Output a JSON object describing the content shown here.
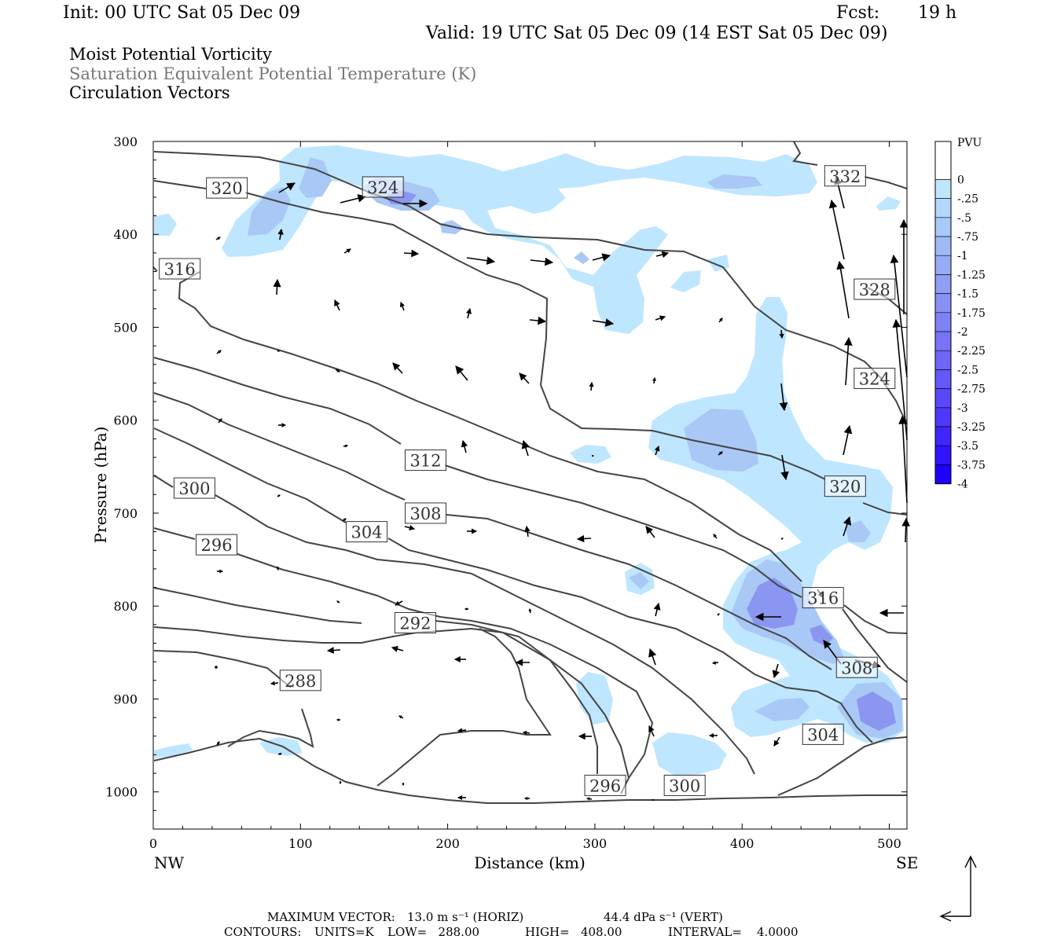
{
  "header": {
    "init": "Init: 00 UTC Sat 05 Dec 09",
    "fcst_label": "Fcst:",
    "fcst_value": "19 h",
    "valid": "Valid: 19 UTC Sat 05 Dec 09 (14 EST Sat 05 Dec 09)"
  },
  "fields": {
    "line1": "Moist Potential Vorticity",
    "line2": "Saturation Equivalent Potential Temperature (K)",
    "line3": "Circulation Vectors"
  },
  "footer": {
    "max_vector_label": "MAXIMUM VECTOR:",
    "horiz": "13.0 m s⁻¹ (HORIZ)",
    "vert": "44.4 dPa s⁻¹ (VERT)",
    "contours_label": "CONTOURS:",
    "units": "UNITS=K",
    "low": "LOW=   288.00",
    "high": "HIGH=   408.00",
    "interval": "INTERVAL=    4.0000"
  },
  "colors": {
    "contour": "#444444",
    "shade_light": "#bfe6ff",
    "shade_mid": "#a9c8f5",
    "shade_dark": "#8a96f0",
    "vector": "#000000"
  },
  "chart_data": {
    "type": "contour",
    "xlabel": "Distance (km)",
    "ylabel": "Pressure (hPa)",
    "xlim": [
      0,
      512
    ],
    "ylim": [
      1040,
      300
    ],
    "x_ticks": [
      0,
      100,
      200,
      300,
      400,
      500
    ],
    "y_ticks": [
      300,
      400,
      500,
      600,
      700,
      800,
      900,
      1000
    ],
    "x_end_labels": {
      "left": "NW",
      "right": "SE"
    },
    "colorbar": {
      "units": "PVU",
      "levels": [
        "0",
        "-.25",
        "-.5",
        "-.75",
        "-1",
        "-1.25",
        "-1.5",
        "-1.75",
        "-2",
        "-2.25",
        "-2.5",
        "-2.75",
        "-3",
        "-3.25",
        "-3.5",
        "-3.75",
        "-4"
      ],
      "colors": [
        "#ffffff",
        "#ffffff",
        "#bfe6ff",
        "#b3d8fb",
        "#a8caf8",
        "#a0baf6",
        "#98acf5",
        "#909ef4",
        "#8890f4",
        "#8082f4",
        "#7874f5",
        "#6e66f6",
        "#6458f7",
        "#5a48f8",
        "#4e38f9",
        "#4026fb",
        "#3014fd",
        "#1e00ff"
      ]
    },
    "contour_labels": [
      {
        "value": "320",
        "x": 50,
        "p": 350
      },
      {
        "value": "324",
        "x": 156,
        "p": 349
      },
      {
        "value": "332",
        "x": 470,
        "p": 337
      },
      {
        "value": "316",
        "x": 18,
        "p": 437
      },
      {
        "value": "328",
        "x": 490,
        "p": 459
      },
      {
        "value": "324",
        "x": 490,
        "p": 555
      },
      {
        "value": "312",
        "x": 185,
        "p": 643
      },
      {
        "value": "320",
        "x": 470,
        "p": 671
      },
      {
        "value": "300",
        "x": 28,
        "p": 673
      },
      {
        "value": "308",
        "x": 185,
        "p": 700
      },
      {
        "value": "304",
        "x": 145,
        "p": 720
      },
      {
        "value": "296",
        "x": 43,
        "p": 734
      },
      {
        "value": "316",
        "x": 455,
        "p": 791
      },
      {
        "value": "292",
        "x": 178,
        "p": 818
      },
      {
        "value": "308",
        "x": 478,
        "p": 866
      },
      {
        "value": "288",
        "x": 100,
        "p": 880
      },
      {
        "value": "304",
        "x": 455,
        "p": 938
      },
      {
        "value": "296",
        "x": 307,
        "p": 993
      },
      {
        "value": "300",
        "x": 361,
        "p": 993
      }
    ]
  }
}
